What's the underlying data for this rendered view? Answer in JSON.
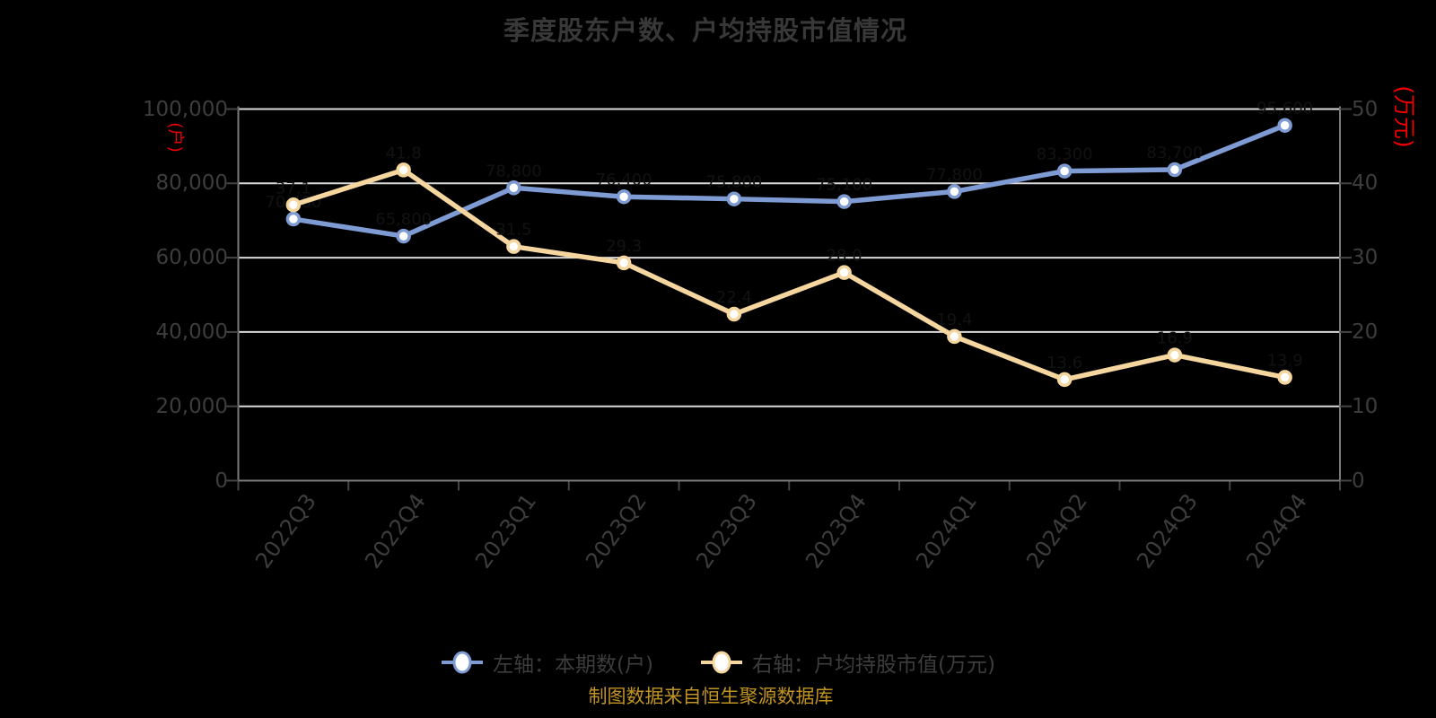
{
  "title": "季度股东户数、户均持股市值情况",
  "source_note": "制图数据来自恒生聚源数据库",
  "colors": {
    "background": "#000000",
    "title_text": "#383838",
    "axis_text": "#3d3d3d",
    "axis_line": "#7a7a7a",
    "tick": "#454545",
    "gridline": "#d9d9d9",
    "axis_unit_red": "#ee0000",
    "source_note_gold": "#c09324",
    "series_blue": "#7e9bd3",
    "series_yellow": "#f5d69e",
    "marker_fill": "#ffffff",
    "point_label": "#121212"
  },
  "legend": {
    "items": [
      {
        "label": "左轴：本期数(户)",
        "color": "#7e9bd3"
      },
      {
        "label": "右轴：户均持股市值(万元)",
        "color": "#f5d69e"
      }
    ]
  },
  "chart_data": {
    "type": "line",
    "title": "季度股东户数、户均持股市值情况",
    "categories": [
      "2022Q3",
      "2022Q4",
      "2023Q1",
      "2023Q2",
      "2023Q3",
      "2023Q4",
      "2024Q1",
      "2024Q2",
      "2024Q3",
      "2024Q4"
    ],
    "series": [
      {
        "name": "左轴：本期数(户)",
        "axis": "left",
        "color": "#7e9bd3",
        "values": [
          70400,
          65800,
          78800,
          76400,
          75800,
          75100,
          77800,
          83300,
          83700,
          95600
        ]
      },
      {
        "name": "右轴：户均持股市值(万元)",
        "axis": "right",
        "color": "#f5d69e",
        "values": [
          37.1,
          41.8,
          31.5,
          29.3,
          22.4,
          28.0,
          19.4,
          13.6,
          16.9,
          13.9
        ]
      }
    ],
    "left_axis": {
      "name": "(户)",
      "min": 0,
      "max": 100000,
      "tick_labels": [
        "0",
        "20,000",
        "40,000",
        "60,000",
        "80,000",
        "100,000"
      ]
    },
    "right_axis": {
      "name": "(万元)",
      "min": 0,
      "max": 50,
      "tick_labels": [
        "0",
        "10",
        "20",
        "30",
        "40",
        "50"
      ]
    },
    "grid": true,
    "legend_position": "bottom",
    "x_labels_rotated": true
  }
}
